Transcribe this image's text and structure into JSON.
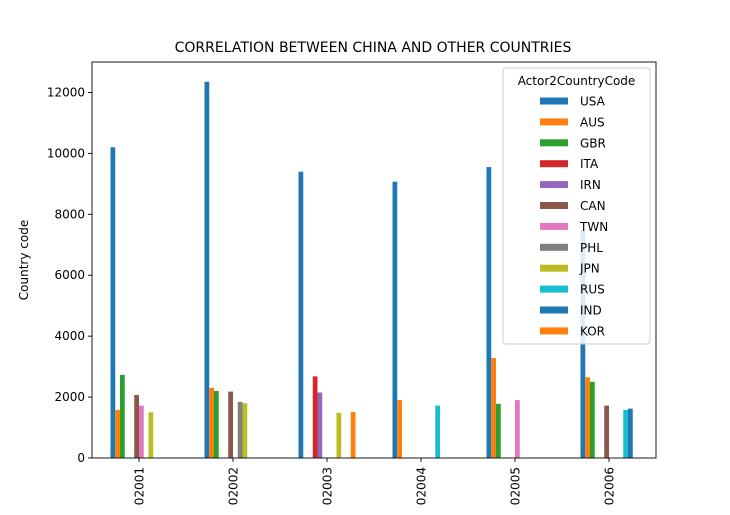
{
  "chart_data": {
    "type": "bar",
    "title": "CORRELATION BETWEEN CHINA AND OTHER COUNTRIES",
    "xlabel": "",
    "ylabel": "Country code",
    "ylim": [
      0,
      13000
    ],
    "yticks": [
      0,
      2000,
      4000,
      6000,
      8000,
      10000,
      12000
    ],
    "categories": [
      "02001",
      "02002",
      "02003",
      "02004",
      "02005",
      "02006"
    ],
    "legend": {
      "title": "Actor2CountryCode",
      "placement": "top-right"
    },
    "series": [
      {
        "name": "USA",
        "color": "#1f77b4",
        "values": [
          10200,
          12350,
          9400,
          9070,
          9550,
          7500
        ]
      },
      {
        "name": "AUS",
        "color": "#ff7f0e",
        "values": [
          1580,
          2300,
          null,
          1900,
          3280,
          2650
        ]
      },
      {
        "name": "GBR",
        "color": "#2ca02c",
        "values": [
          2730,
          2200,
          null,
          null,
          1780,
          2500
        ]
      },
      {
        "name": "ITA",
        "color": "#d62728",
        "values": [
          null,
          null,
          2680,
          null,
          null,
          null
        ]
      },
      {
        "name": "IRN",
        "color": "#9467bd",
        "values": [
          null,
          null,
          2150,
          null,
          null,
          null
        ]
      },
      {
        "name": "CAN",
        "color": "#8c564b",
        "values": [
          2070,
          2180,
          null,
          null,
          null,
          1720
        ]
      },
      {
        "name": "TWN",
        "color": "#e377c2",
        "values": [
          1720,
          null,
          null,
          null,
          1900,
          null
        ]
      },
      {
        "name": "PHL",
        "color": "#7f7f7f",
        "values": [
          null,
          1840,
          null,
          null,
          null,
          null
        ]
      },
      {
        "name": "JPN",
        "color": "#bcbd22",
        "values": [
          1500,
          1800,
          1480,
          null,
          null,
          null
        ]
      },
      {
        "name": "RUS",
        "color": "#17becf",
        "values": [
          null,
          null,
          null,
          1720,
          null,
          1580
        ]
      },
      {
        "name": "IND",
        "color": "#1f77b4",
        "values": [
          null,
          null,
          null,
          null,
          null,
          1620
        ]
      },
      {
        "name": "KOR",
        "color": "#ff7f0e",
        "values": [
          null,
          null,
          1510,
          null,
          null,
          null
        ]
      }
    ]
  }
}
